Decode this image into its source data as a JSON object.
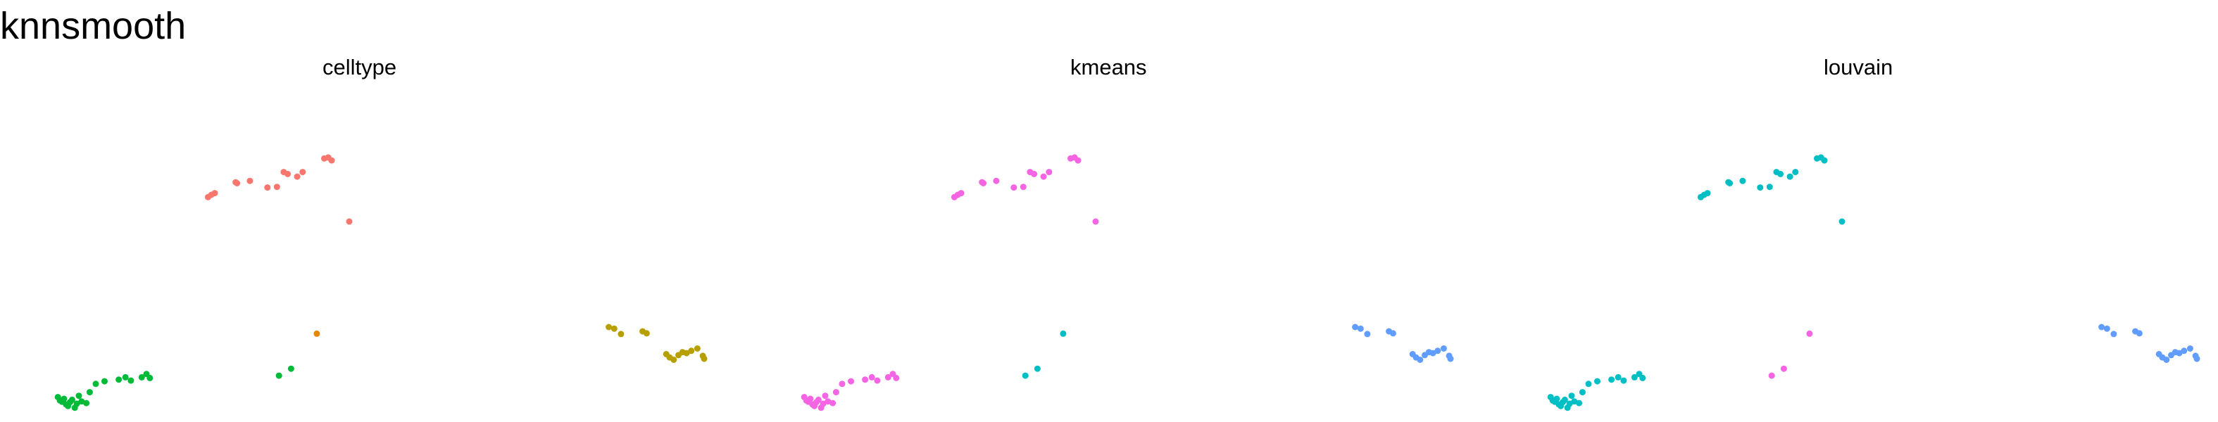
{
  "figure": {
    "title": "knnsmooth"
  },
  "chart_data": [
    {
      "type": "scatter",
      "title": "celltype",
      "xlabel": "",
      "ylabel": "",
      "xlim": [
        0,
        100
      ],
      "ylim": [
        0,
        100
      ],
      "grid": false,
      "series": [
        {
          "color": "#F8766D",
          "points": [
            [
              26.6,
              34.1
            ],
            [
              27.1,
              33.4
            ],
            [
              27.6,
              32.9
            ],
            [
              30.7,
              29.6
            ],
            [
              30.9,
              29.9
            ],
            [
              32.8,
              29.2
            ],
            [
              35.4,
              31.2
            ],
            [
              36.8,
              31.0
            ],
            [
              37.8,
              26.5
            ],
            [
              38.4,
              27.1
            ],
            [
              39.8,
              27.9
            ],
            [
              40.6,
              26.5
            ],
            [
              43.8,
              22.4
            ],
            [
              44.4,
              22.1
            ],
            [
              44.9,
              23.0
            ],
            [
              47.5,
              41.5
            ]
          ]
        },
        {
          "color": "#B79F00",
          "points": [
            [
              85.9,
              73.4
            ],
            [
              86.7,
              73.9
            ],
            [
              87.7,
              75.5
            ],
            [
              90.9,
              74.7
            ],
            [
              91.5,
              75.3
            ],
            [
              94.4,
              81.6
            ],
            [
              94.9,
              82.6
            ],
            [
              95.5,
              83.3
            ],
            [
              96.2,
              81.9
            ],
            [
              96.8,
              81.0
            ],
            [
              97.4,
              81.3
            ],
            [
              98.1,
              80.6
            ],
            [
              99.0,
              79.9
            ],
            [
              99.8,
              82.1
            ],
            [
              100.0,
              83.0
            ]
          ]
        },
        {
          "color": "#00BA38",
          "points": [
            [
              4.4,
              94.6
            ],
            [
              4.7,
              95.6
            ],
            [
              5.0,
              96.0
            ],
            [
              5.3,
              95.1
            ],
            [
              5.6,
              96.8
            ],
            [
              5.9,
              97.3
            ],
            [
              6.2,
              96.1
            ],
            [
              6.5,
              95.4
            ],
            [
              6.9,
              97.8
            ],
            [
              7.2,
              96.6
            ],
            [
              7.5,
              94.2
            ],
            [
              7.9,
              95.9
            ],
            [
              8.6,
              96.4
            ],
            [
              9.1,
              93.1
            ],
            [
              10.0,
              90.6
            ],
            [
              11.3,
              89.8
            ],
            [
              13.4,
              89.3
            ],
            [
              14.4,
              88.6
            ],
            [
              15.2,
              89.6
            ],
            [
              16.8,
              88.6
            ],
            [
              17.5,
              87.6
            ],
            [
              18.0,
              88.8
            ],
            [
              37.1,
              88.1
            ],
            [
              38.9,
              86.0
            ]
          ]
        },
        {
          "color": "#E58700",
          "points": [
            [
              42.7,
              75.4
            ]
          ]
        }
      ]
    },
    {
      "type": "scatter",
      "title": "kmeans",
      "xlabel": "",
      "ylabel": "",
      "xlim": [
        0,
        100
      ],
      "ylim": [
        0,
        100
      ],
      "grid": false,
      "series": [
        {
          "color": "#F564E3",
          "points": [
            [
              26.6,
              34.1
            ],
            [
              27.1,
              33.4
            ],
            [
              27.6,
              32.9
            ],
            [
              30.7,
              29.6
            ],
            [
              30.9,
              29.9
            ],
            [
              32.8,
              29.2
            ],
            [
              35.4,
              31.2
            ],
            [
              36.8,
              31.0
            ],
            [
              37.8,
              26.5
            ],
            [
              38.4,
              27.1
            ],
            [
              39.8,
              27.9
            ],
            [
              40.6,
              26.5
            ],
            [
              43.8,
              22.4
            ],
            [
              44.4,
              22.1
            ],
            [
              44.9,
              23.0
            ],
            [
              47.5,
              41.5
            ],
            [
              4.4,
              94.6
            ],
            [
              4.7,
              95.6
            ],
            [
              5.0,
              96.0
            ],
            [
              5.3,
              95.1
            ],
            [
              5.6,
              96.8
            ],
            [
              5.9,
              97.3
            ],
            [
              6.2,
              96.1
            ],
            [
              6.5,
              95.4
            ],
            [
              6.9,
              97.8
            ],
            [
              7.2,
              96.6
            ],
            [
              7.5,
              94.2
            ],
            [
              7.9,
              95.9
            ],
            [
              8.6,
              96.4
            ],
            [
              9.1,
              93.1
            ],
            [
              10.0,
              90.6
            ],
            [
              11.3,
              89.8
            ],
            [
              13.4,
              89.3
            ],
            [
              14.4,
              88.6
            ],
            [
              15.2,
              89.6
            ],
            [
              16.8,
              88.6
            ],
            [
              17.5,
              87.6
            ],
            [
              18.0,
              88.8
            ]
          ]
        },
        {
          "color": "#00BFC4",
          "points": [
            [
              37.1,
              88.1
            ],
            [
              38.9,
              86.0
            ],
            [
              42.7,
              75.4
            ]
          ]
        },
        {
          "color": "#619CFF",
          "points": [
            [
              85.9,
              73.4
            ],
            [
              86.7,
              73.9
            ],
            [
              87.7,
              75.5
            ],
            [
              90.9,
              74.7
            ],
            [
              91.5,
              75.3
            ],
            [
              94.4,
              81.6
            ],
            [
              94.9,
              82.6
            ],
            [
              95.5,
              83.3
            ],
            [
              96.2,
              81.9
            ],
            [
              96.8,
              81.0
            ],
            [
              97.4,
              81.3
            ],
            [
              98.1,
              80.6
            ],
            [
              99.0,
              79.9
            ],
            [
              99.8,
              82.1
            ],
            [
              100.0,
              83.0
            ]
          ]
        }
      ]
    },
    {
      "type": "scatter",
      "title": "louvain",
      "xlabel": "",
      "ylabel": "",
      "xlim": [
        0,
        100
      ],
      "ylim": [
        0,
        100
      ],
      "grid": false,
      "series": [
        {
          "color": "#00BFC4",
          "points": [
            [
              26.6,
              34.1
            ],
            [
              27.1,
              33.4
            ],
            [
              27.6,
              32.9
            ],
            [
              30.7,
              29.6
            ],
            [
              30.9,
              29.9
            ],
            [
              32.8,
              29.2
            ],
            [
              35.4,
              31.2
            ],
            [
              36.8,
              31.0
            ],
            [
              37.8,
              26.5
            ],
            [
              38.4,
              27.1
            ],
            [
              39.8,
              27.9
            ],
            [
              40.6,
              26.5
            ],
            [
              43.8,
              22.4
            ],
            [
              44.4,
              22.1
            ],
            [
              44.9,
              23.0
            ],
            [
              47.5,
              41.5
            ],
            [
              4.4,
              94.6
            ],
            [
              4.7,
              95.6
            ],
            [
              5.0,
              96.0
            ],
            [
              5.3,
              95.1
            ],
            [
              5.6,
              96.8
            ],
            [
              5.9,
              97.3
            ],
            [
              6.2,
              96.1
            ],
            [
              6.5,
              95.4
            ],
            [
              6.9,
              97.8
            ],
            [
              7.2,
              96.6
            ],
            [
              7.5,
              94.2
            ],
            [
              7.9,
              95.9
            ],
            [
              8.6,
              96.4
            ],
            [
              9.1,
              93.1
            ],
            [
              10.0,
              90.6
            ],
            [
              11.3,
              89.8
            ],
            [
              13.4,
              89.3
            ],
            [
              14.4,
              88.6
            ],
            [
              15.2,
              89.6
            ],
            [
              16.8,
              88.6
            ],
            [
              17.5,
              87.6
            ],
            [
              18.0,
              88.8
            ]
          ]
        },
        {
          "color": "#F564E3",
          "points": [
            [
              37.1,
              88.1
            ],
            [
              38.9,
              86.0
            ],
            [
              42.7,
              75.4
            ]
          ]
        },
        {
          "color": "#619CFF",
          "points": [
            [
              85.9,
              73.4
            ],
            [
              86.7,
              73.9
            ],
            [
              87.7,
              75.5
            ],
            [
              90.9,
              74.7
            ],
            [
              91.5,
              75.3
            ],
            [
              94.4,
              81.6
            ],
            [
              94.9,
              82.6
            ],
            [
              95.5,
              83.3
            ],
            [
              96.2,
              81.9
            ],
            [
              96.8,
              81.0
            ],
            [
              97.4,
              81.3
            ],
            [
              98.1,
              80.6
            ],
            [
              99.0,
              79.9
            ],
            [
              99.8,
              82.1
            ],
            [
              100.0,
              83.0
            ]
          ]
        }
      ]
    }
  ]
}
